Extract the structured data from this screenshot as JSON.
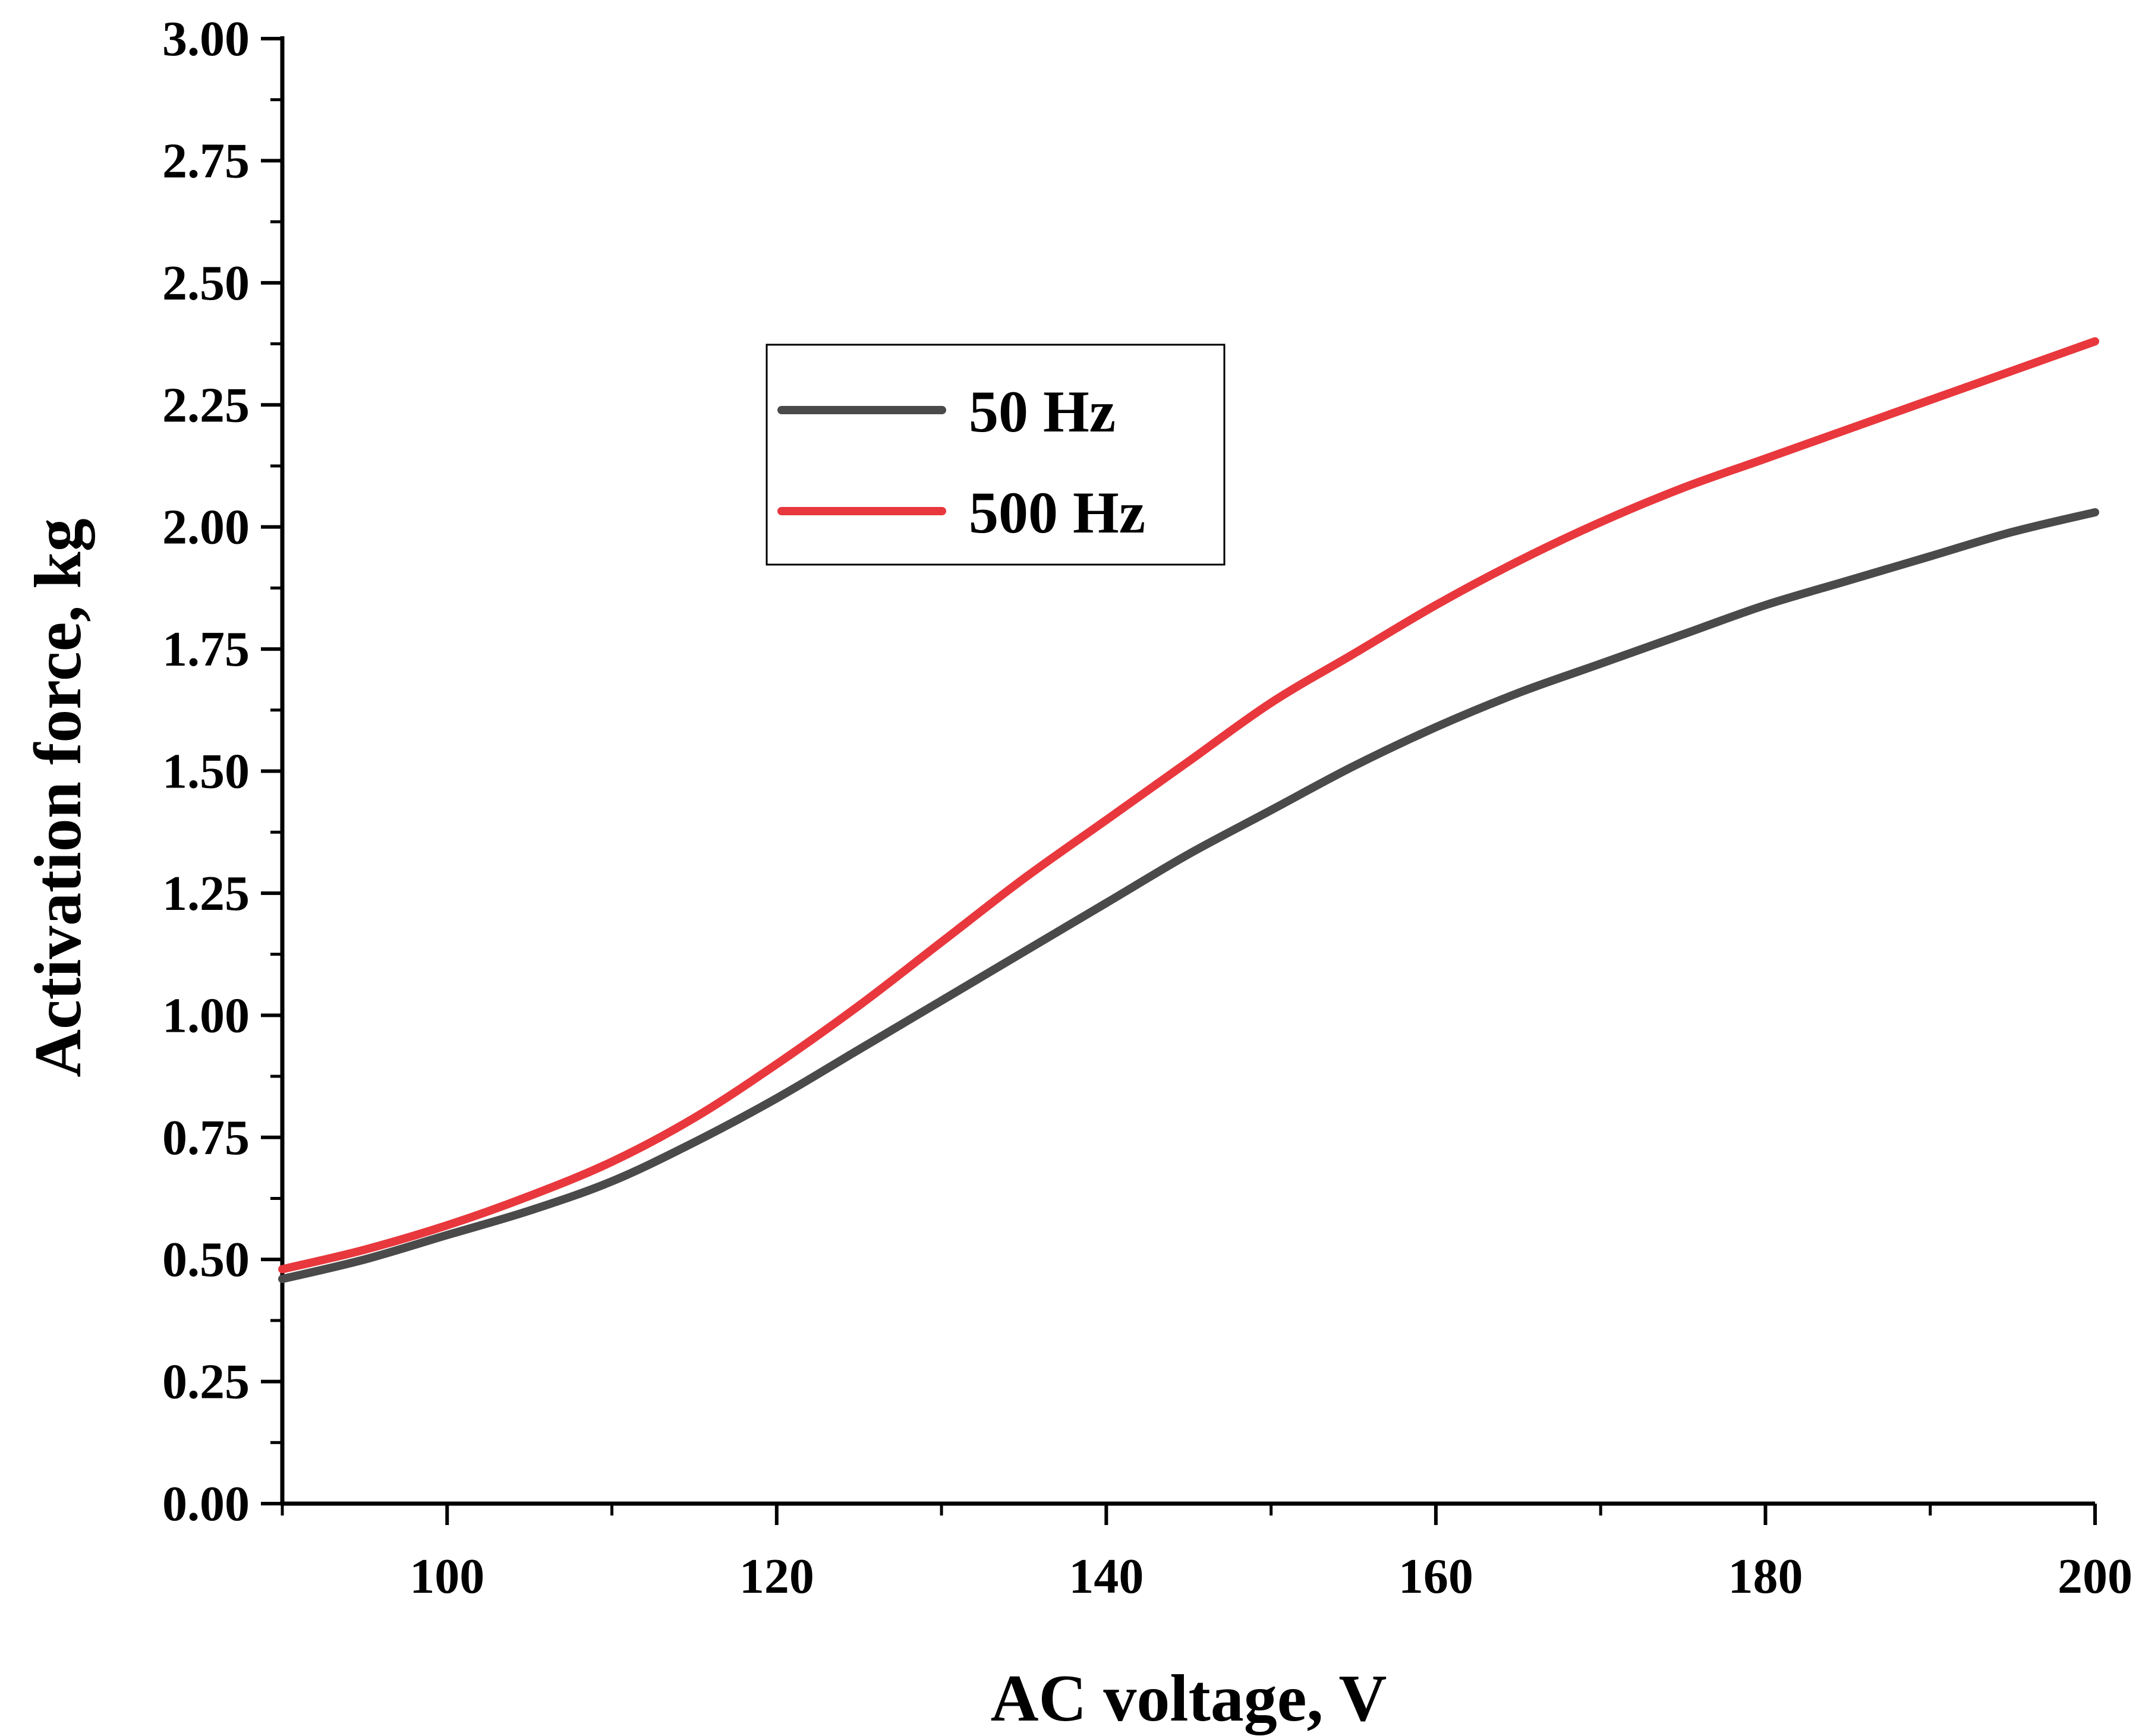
{
  "chart_data": {
    "type": "line",
    "title": "",
    "xlabel": "AC voltage, V",
    "ylabel": "Activation force, kg",
    "xlim": [
      90,
      200
    ],
    "ylim": [
      0,
      3
    ],
    "x_ticks": [
      100,
      120,
      140,
      160,
      180,
      200
    ],
    "x_tick_labels": [
      "100",
      "120",
      "140",
      "160",
      "180",
      "200"
    ],
    "y_ticks": [
      0,
      0.25,
      0.5,
      0.75,
      1,
      1.25,
      1.5,
      1.75,
      2,
      2.25,
      2.5,
      2.75,
      3
    ],
    "y_tick_labels": [
      "0.00",
      "0.25",
      "0.50",
      "0.75",
      "1.00",
      "1.25",
      "1.50",
      "1.75",
      "2.00",
      "2.25",
      "2.50",
      "2.75",
      "3.00"
    ],
    "grid": false,
    "legend_position": "top-center",
    "x": [
      90,
      95,
      100,
      105,
      110,
      115,
      120,
      125,
      130,
      135,
      140,
      145,
      150,
      155,
      160,
      165,
      170,
      175,
      180,
      185,
      190,
      195,
      200
    ],
    "series": [
      {
        "name": "50 Hz",
        "color": "#4a4a4a",
        "values": [
          0.46,
          0.5,
          0.55,
          0.6,
          0.66,
          0.74,
          0.83,
          0.93,
          1.03,
          1.13,
          1.23,
          1.33,
          1.42,
          1.51,
          1.59,
          1.66,
          1.72,
          1.78,
          1.84,
          1.89,
          1.94,
          1.99,
          2.03
        ]
      },
      {
        "name": "500 Hz",
        "color": "#e8383d",
        "values": [
          0.48,
          0.52,
          0.57,
          0.63,
          0.7,
          0.79,
          0.9,
          1.02,
          1.15,
          1.28,
          1.4,
          1.52,
          1.64,
          1.74,
          1.84,
          1.93,
          2.01,
          2.08,
          2.14,
          2.2,
          2.26,
          2.32,
          2.38
        ]
      }
    ]
  }
}
